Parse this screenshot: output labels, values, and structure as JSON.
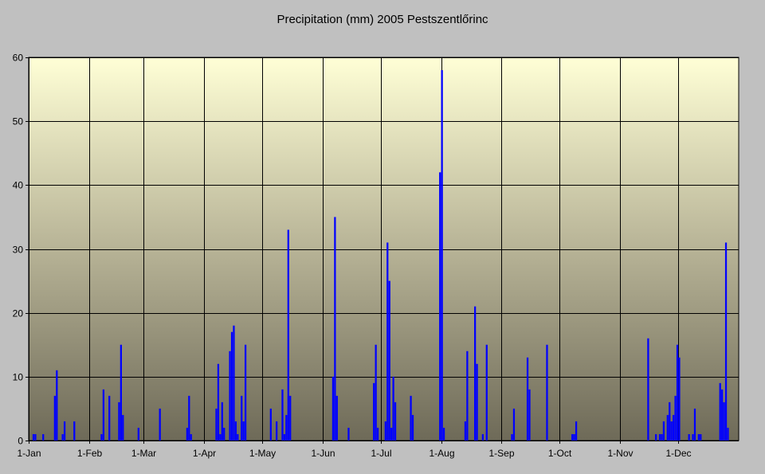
{
  "chart_data": {
    "type": "bar",
    "title": "Precipitation (mm) 2005 Pestszentlőrinc",
    "xlabel": "",
    "ylabel": "",
    "year": 2005,
    "ylim": [
      0,
      60
    ],
    "y_ticks": [
      0,
      10,
      20,
      30,
      40,
      50,
      60
    ],
    "x_tick_labels": [
      "1-Jan",
      "1-Feb",
      "1-Mar",
      "1-Apr",
      "1-May",
      "1-Jun",
      "1-Jul",
      "1-Aug",
      "1-Sep",
      "1-Oct",
      "1-Nov",
      "1-Dec"
    ],
    "x_ticks": [
      "2005-01-01",
      "2005-02-01",
      "2005-03-01",
      "2005-04-01",
      "2005-05-01",
      "2005-06-01",
      "2005-07-01",
      "2005-08-01",
      "2005-09-01",
      "2005-10-01",
      "2005-11-01",
      "2005-12-01"
    ],
    "xlim": [
      "2005-01-01",
      "2005-12-31"
    ],
    "grid": true,
    "legend": "none",
    "colors": {
      "bar": "#0000ff",
      "plot_top": "#ffffd6",
      "plot_bottom": "#6e6a58",
      "page_background": "#c0c0c0",
      "grid": "#000000"
    },
    "series": [
      {
        "x": [
          "2005-01-03",
          "2005-01-04",
          "2005-01-08",
          "2005-01-14",
          "2005-01-15",
          "2005-01-18",
          "2005-01-19",
          "2005-01-24",
          "2005-02-07",
          "2005-02-08",
          "2005-02-11",
          "2005-02-16",
          "2005-02-17",
          "2005-02-18",
          "2005-02-26",
          "2005-03-09",
          "2005-03-23",
          "2005-03-24",
          "2005-03-25",
          "2005-04-07",
          "2005-04-08",
          "2005-04-09",
          "2005-04-10",
          "2005-04-11",
          "2005-04-14",
          "2005-04-15",
          "2005-04-16",
          "2005-04-17",
          "2005-04-18",
          "2005-04-20",
          "2005-04-21",
          "2005-04-22",
          "2005-05-05",
          "2005-05-08",
          "2005-05-11",
          "2005-05-12",
          "2005-05-13",
          "2005-05-14",
          "2005-05-15",
          "2005-06-06",
          "2005-06-07",
          "2005-06-08",
          "2005-06-14",
          "2005-06-27",
          "2005-06-28",
          "2005-06-29",
          "2005-07-03",
          "2005-07-04",
          "2005-07-05",
          "2005-07-06",
          "2005-07-07",
          "2005-07-08",
          "2005-07-16",
          "2005-07-17",
          "2005-07-31",
          "2005-08-01",
          "2005-08-02",
          "2005-08-13",
          "2005-08-14",
          "2005-08-18",
          "2005-08-19",
          "2005-08-22",
          "2005-08-24",
          "2005-09-06",
          "2005-09-07",
          "2005-09-14",
          "2005-09-15",
          "2005-09-24",
          "2005-10-07",
          "2005-10-08",
          "2005-10-09",
          "2005-11-15",
          "2005-11-19",
          "2005-11-21",
          "2005-11-22",
          "2005-11-23",
          "2005-11-25",
          "2005-11-26",
          "2005-11-27",
          "2005-11-28",
          "2005-11-29",
          "2005-11-30",
          "2005-12-01",
          "2005-12-06",
          "2005-12-08",
          "2005-12-09",
          "2005-12-11",
          "2005-12-12",
          "2005-12-22",
          "2005-12-23",
          "2005-12-24",
          "2005-12-25",
          "2005-12-26"
        ],
        "values": [
          1,
          1,
          1,
          7,
          11,
          1,
          3,
          3,
          1,
          8,
          7,
          6,
          15,
          4,
          2,
          5,
          2,
          7,
          1,
          5,
          12,
          1,
          6,
          2,
          14,
          17,
          18,
          3,
          1,
          7,
          3,
          15,
          5,
          3,
          8,
          1,
          4,
          33,
          7,
          10,
          35,
          7,
          2,
          9,
          15,
          2,
          3,
          31,
          25,
          2,
          10,
          6,
          7,
          4,
          42,
          58,
          2,
          3,
          14,
          21,
          12,
          1,
          15,
          1,
          5,
          13,
          8,
          15,
          1,
          1,
          3,
          16,
          1,
          1,
          1,
          3,
          4,
          6,
          3,
          4,
          7,
          15,
          13,
          1,
          1,
          5,
          1,
          1,
          9,
          8,
          6,
          31,
          2
        ]
      }
    ]
  }
}
